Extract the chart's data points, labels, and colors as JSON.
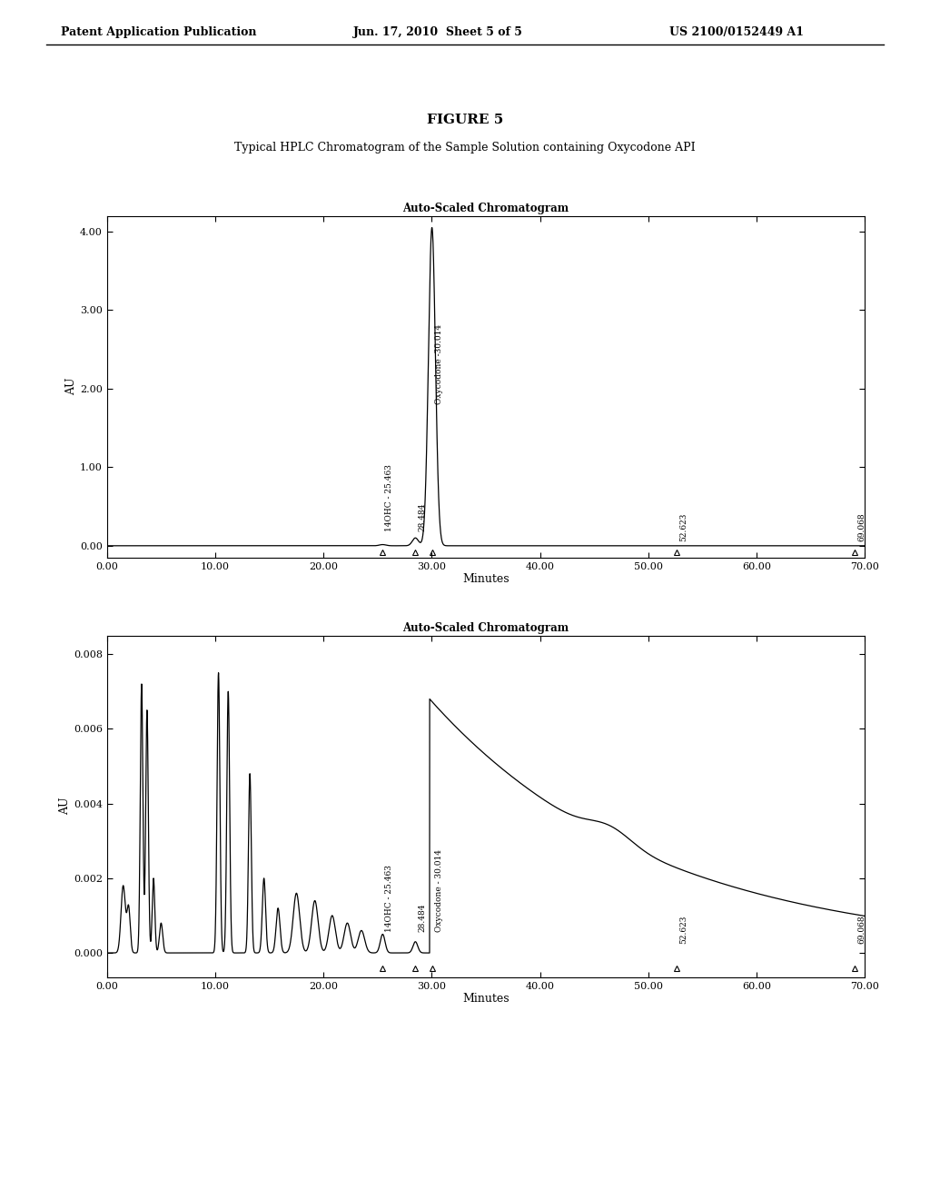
{
  "page_header_left": "Patent Application Publication",
  "page_header_center": "Jun. 17, 2010  Sheet 5 of 5",
  "page_header_right": "US 2100/0152449 A1",
  "figure_title": "FIGURE 5",
  "figure_caption": "Typical HPLC Chromatogram of the Sample Solution containing Oxycodone API",
  "plot1_title": "Auto-Scaled Chromatogram",
  "plot1_ylabel": "AU",
  "plot1_xlabel": "Minutes",
  "plot1_ylim": [
    -0.15,
    4.2
  ],
  "plot1_yticks": [
    0.0,
    1.0,
    2.0,
    3.0,
    4.0
  ],
  "plot1_xlim": [
    0,
    70
  ],
  "plot1_xticks": [
    0.0,
    10.0,
    20.0,
    30.0,
    40.0,
    50.0,
    60.0,
    70.0
  ],
  "plot2_title": "Auto-Scaled Chromatogram",
  "plot2_ylabel": "AU",
  "plot2_xlabel": "Minutes",
  "plot2_ylim": [
    -0.00065,
    0.0085
  ],
  "plot2_yticks": [
    0.0,
    0.002,
    0.004,
    0.006,
    0.008
  ],
  "plot2_xlim": [
    0,
    70
  ],
  "plot2_xticks": [
    0.0,
    10.0,
    20.0,
    30.0,
    40.0,
    50.0,
    60.0,
    70.0
  ],
  "triangle_positions_plot1": [
    25.463,
    28.484,
    30.014,
    52.623,
    69.068
  ],
  "triangle_positions_plot2": [
    25.463,
    28.484,
    30.014,
    52.623,
    69.068
  ],
  "background_color": "#ffffff",
  "line_color": "#000000"
}
